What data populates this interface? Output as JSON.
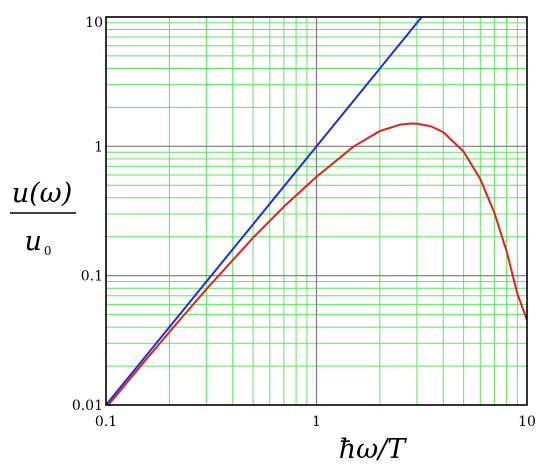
{
  "chart_data": {
    "type": "line",
    "xscale": "log",
    "yscale": "log",
    "xlim": [
      0.1,
      10
    ],
    "ylim": [
      0.01,
      10
    ],
    "xlabel": "ħω/T",
    "ylabel": {
      "numerator": "u(ω)",
      "denominator": "u",
      "denominator_subscript": "0"
    },
    "x_ticks": [
      "0.1",
      "1",
      "10"
    ],
    "y_ticks": [
      "0.01",
      "0.1",
      "1",
      "10"
    ],
    "grid": true,
    "colors": {
      "minor_grid": "#5ee65e",
      "major_grid": "#7a7a7a",
      "frame": "#000000"
    },
    "series": [
      {
        "color": "#1f2fd6",
        "x": [
          0.1,
          0.2,
          0.5,
          1.0,
          2.0,
          3.16
        ],
        "y": [
          0.01,
          0.04,
          0.25,
          1.0,
          4.0,
          10.0
        ]
      },
      {
        "color": "#e61e1e",
        "x": [
          0.1,
          0.15,
          0.2,
          0.3,
          0.5,
          0.7,
          1.0,
          1.5,
          2.0,
          2.5,
          2.82,
          3.0,
          3.5,
          4.0,
          5.0,
          6.0,
          7.0,
          8.0,
          9.0,
          10.0
        ],
        "y": [
          0.0095,
          0.0211,
          0.0367,
          0.0787,
          0.1966,
          0.3417,
          0.582,
          0.9959,
          1.313,
          1.4725,
          1.5029,
          1.4977,
          1.427,
          1.2872,
          0.9101,
          0.5583,
          0.3068,
          0.1544,
          0.0725,
          0.0454
        ]
      }
    ]
  }
}
